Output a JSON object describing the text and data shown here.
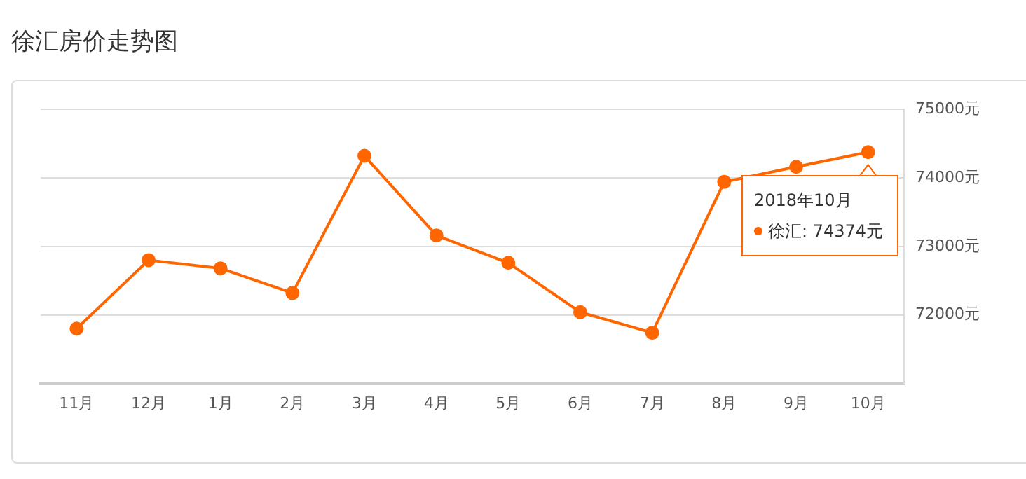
{
  "chart_data": {
    "type": "line",
    "title": "徐汇房价走势图",
    "categories": [
      "11月",
      "12月",
      "1月",
      "2月",
      "3月",
      "4月",
      "5月",
      "6月",
      "7月",
      "8月",
      "9月",
      "10月"
    ],
    "series": [
      {
        "color": "#ff6600",
        "values": [
          71800,
          72800,
          72680,
          72320,
          74320,
          73160,
          72760,
          72040,
          71740,
          73940,
          74160,
          74374
        ]
      }
    ],
    "ylim": [
      71000,
      75000
    ],
    "yticks": [
      {
        "value": 72000,
        "label": "72000元"
      },
      {
        "value": 73000,
        "label": "73000元"
      },
      {
        "value": 74000,
        "label": "74000元"
      },
      {
        "value": 75000,
        "label": "75000元"
      }
    ],
    "grid": "y",
    "marker": "circle",
    "line_style": "solid",
    "legend": false,
    "annotations": [
      {
        "text": "2018年10月",
        "x": "10月",
        "y": 74374
      },
      "徐汇:  74374元"
    ]
  }
}
